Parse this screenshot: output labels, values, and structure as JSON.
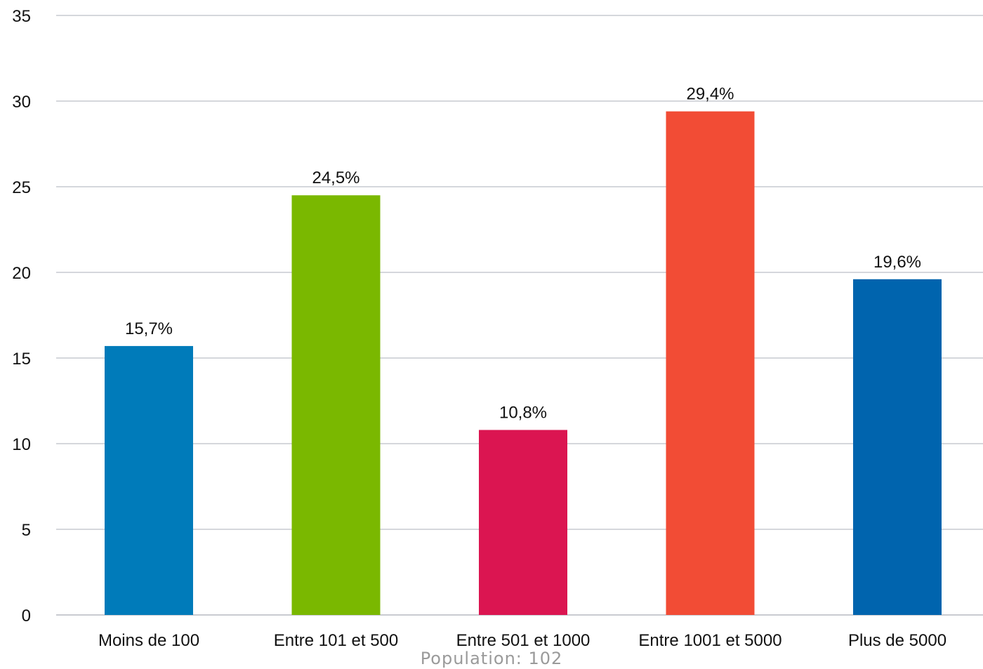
{
  "chart_data": {
    "type": "bar",
    "categories": [
      "Moins de 100",
      "Entre 101 et 500",
      "Entre 501 et 1000",
      "Entre 1001 et 5000",
      "Plus de 5000"
    ],
    "values": [
      15.7,
      24.5,
      10.8,
      29.4,
      19.6
    ],
    "data_labels": [
      "15,7%",
      "24,5%",
      "10,8%",
      "29,4%",
      "19,6%"
    ],
    "colors": [
      "#007BBA",
      "#7AB800",
      "#DB1551",
      "#F24C35",
      "#0064AE"
    ],
    "ylim": [
      0,
      35
    ],
    "yticks": [
      0,
      5,
      10,
      15,
      20,
      25,
      30,
      35
    ],
    "grid": true,
    "legend": "none"
  },
  "footnote": "Population: 102"
}
